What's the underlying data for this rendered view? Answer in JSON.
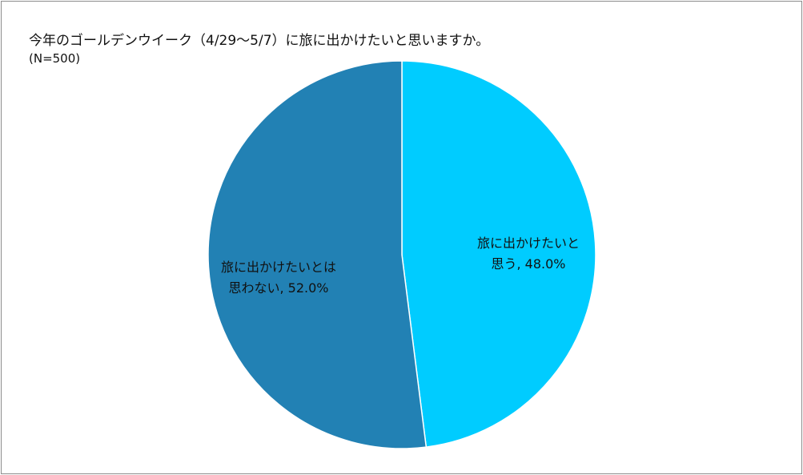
{
  "chart_data": {
    "type": "pie",
    "title": "今年のゴールデンウイーク（4/29〜5/7）に旅に出かけたいと思いますか。",
    "subtitle": "(N=500)",
    "slices": [
      {
        "label_line1": "旅に出かけたいと",
        "label_line2": "思う",
        "value": 48.0,
        "display": "48.0%",
        "color": "#00ccff"
      },
      {
        "label_line1": "旅に出かけたいとは",
        "label_line2": "思わない",
        "value": 52.0,
        "display": "52.0%",
        "color": "#2281b4"
      }
    ]
  }
}
